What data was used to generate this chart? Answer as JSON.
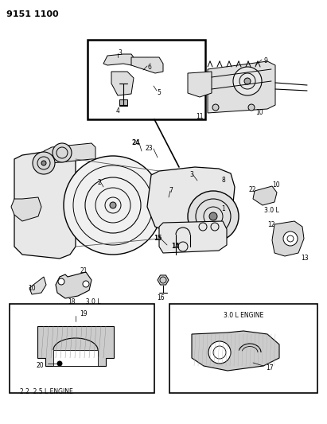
{
  "title_code": "9151 1100",
  "background_color": "#ffffff",
  "fig_width": 4.11,
  "fig_height": 5.33,
  "dpi": 100,
  "box1_label": "2.2  2.5 L ENGINE",
  "box2_label": "3.0 L ENGINE",
  "right_3L": "3.0 L",
  "bottom_3L": "3.0 L"
}
